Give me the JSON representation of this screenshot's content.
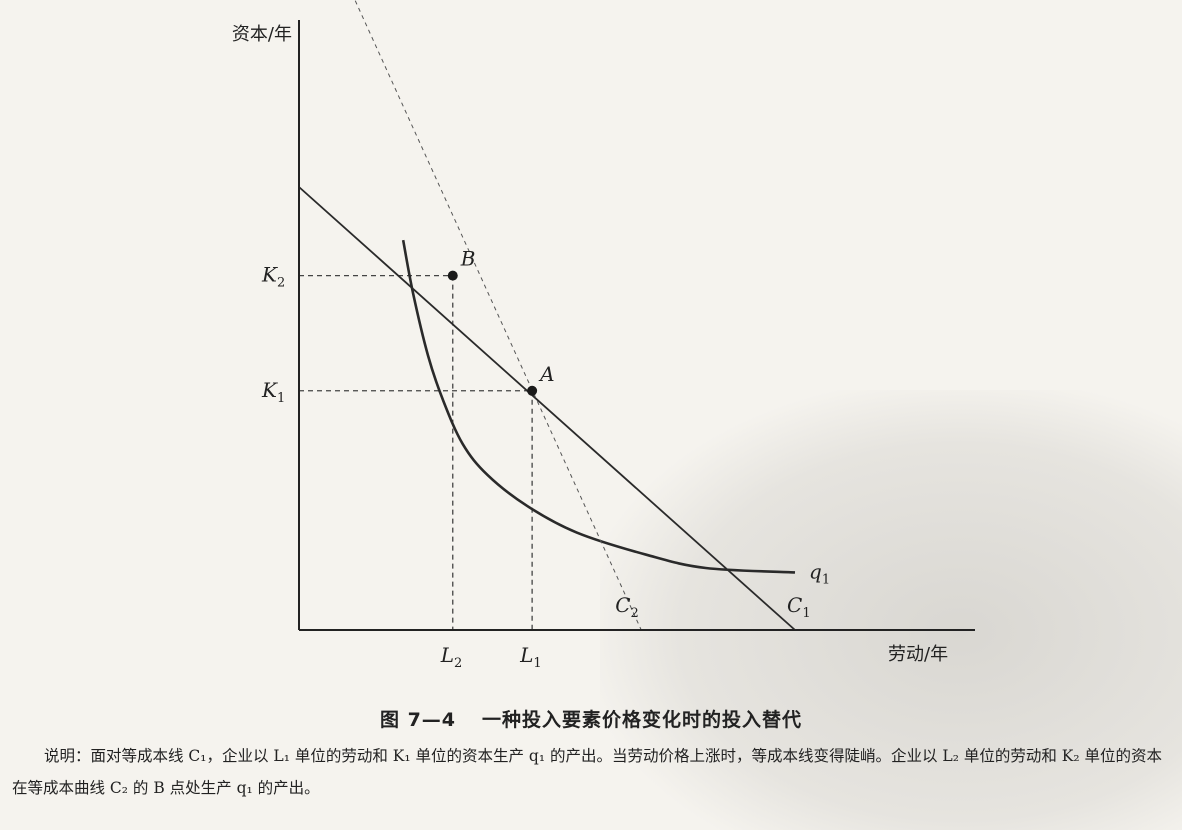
{
  "chart_data": {
    "type": "line",
    "title": "一种投入要素价格变化时的投入替代",
    "figure_number": "图 7—4",
    "ylabel": "资本/年",
    "xlabel": "劳动/年",
    "xlim": [
      0,
      100
    ],
    "ylim": [
      0,
      100
    ],
    "series": [
      {
        "name": "q1",
        "label_main": "q",
        "label_sub": "1",
        "kind": "isoquant",
        "x": [
          21,
          23,
          26,
          29,
          33,
          38,
          46,
          56,
          70,
          82,
          100
        ],
        "y": [
          88,
          76,
          62,
          52,
          42,
          35,
          28,
          22,
          17,
          14,
          13
        ]
      },
      {
        "name": "C1",
        "label_main": "C",
        "label_sub": "1",
        "kind": "isocost",
        "style": "solid",
        "x": [
          0,
          100
        ],
        "y": [
          100,
          0
        ]
      },
      {
        "name": "C2",
        "label_main": "C",
        "label_sub": "2",
        "kind": "isocost",
        "style": "dashed",
        "x": [
          0,
          69
        ],
        "y": [
          170,
          0
        ]
      }
    ],
    "points": [
      {
        "name": "A",
        "x": 47,
        "y": 54
      },
      {
        "name": "B",
        "x": 31,
        "y": 80
      }
    ],
    "tick_labels": {
      "y": [
        {
          "main": "K",
          "sub": "2",
          "value": 80
        },
        {
          "main": "K",
          "sub": "1",
          "value": 54
        }
      ],
      "x": [
        {
          "main": "L",
          "sub": "2",
          "value": 31
        },
        {
          "main": "L",
          "sub": "1",
          "value": 47
        }
      ]
    }
  },
  "caption": {
    "number": "图 7—4",
    "title": "一种投入要素价格变化时的投入替代",
    "note": "说明：面对等成本线 C₁，企业以 L₁ 单位的劳动和 K₁ 单位的资本生产 q₁ 的产出。当劳动价格上涨时，等成本线变得陡峭。企业以 L₂ 单位的劳动和 K₂ 单位的资本在等成本曲线 C₂ 的 B 点处生产 q₁ 的产出。"
  }
}
